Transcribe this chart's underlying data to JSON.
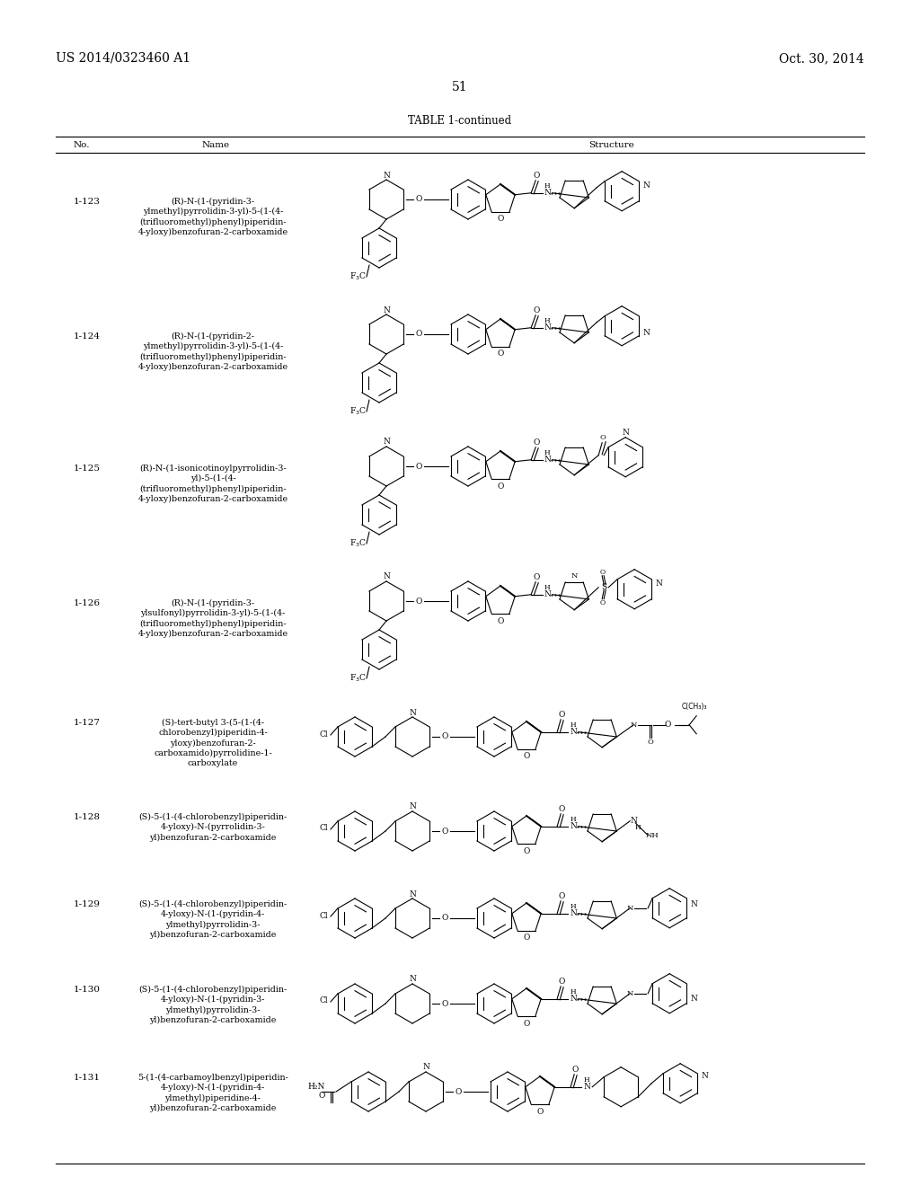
{
  "page_header_left": "US 2014/0323460 A1",
  "page_header_right": "Oct. 30, 2014",
  "page_number": "51",
  "table_title": "TABLE 1-continued",
  "background_color": "#ffffff",
  "text_color": "#000000",
  "compounds": [
    {
      "no": "1-123",
      "name": "(R)-N-(1-(pyridin-3-\nylmethyl)pyrrolidin-3-yl)-5-(1-(4-\n(trifluoromethyl)phenyl)piperidin-\n4-yloxy)benzofuran-2-carboxamide"
    },
    {
      "no": "1-124",
      "name": "(R)-N-(1-(pyridin-2-\nylmethyl)pyrrolidin-3-yl)-5-(1-(4-\n(trifluoromethyl)phenyl)piperidin-\n4-yloxy)benzofuran-2-carboxamide"
    },
    {
      "no": "1-125",
      "name": "(R)-N-(1-isonicotinoylpyrrolidin-3-\nyl)-5-(1-(4-\n(trifluoromethyl)phenyl)piperidin-\n4-yloxy)benzofuran-2-carboxamide"
    },
    {
      "no": "1-126",
      "name": "(R)-N-(1-(pyridin-3-\nylsulfonyl)pyrrolidin-3-yl)-5-(1-(4-\n(trifluoromethyl)phenyl)piperidin-\n4-yloxy)benzofuran-2-carboxamide"
    },
    {
      "no": "1-127",
      "name": "(S)-tert-butyl 3-(5-(1-(4-\nchlorobenzyl)piperidin-4-\nyloxy)benzofuran-2-\ncarboxamido)pyrrolidine-1-\ncarboxylate"
    },
    {
      "no": "1-128",
      "name": "(S)-5-(1-(4-chlorobenzyl)piperidin-\n4-yloxy)-N-(pyrrolidin-3-\nyl)benzofuran-2-carboxamide"
    },
    {
      "no": "1-129",
      "name": "(S)-5-(1-(4-chlorobenzyl)piperidin-\n4-yloxy)-N-(1-(pyridin-4-\nylmethyl)pyrrolidin-3-\nyl)benzofuran-2-carboxamide"
    },
    {
      "no": "1-130",
      "name": "(S)-5-(1-(4-chlorobenzyl)piperidin-\n4-yloxy)-N-(1-(pyridin-3-\nylmethyl)pyrrolidin-3-\nyl)benzofuran-2-carboxamide"
    },
    {
      "no": "1-131",
      "name": "5-(1-(4-carbamoylbenzyl)piperidin-\n4-yloxy)-N-(1-(pyridin-4-\nylmethyl)piperidine-4-\nyl)benzofuran-2-carboxamide"
    }
  ]
}
